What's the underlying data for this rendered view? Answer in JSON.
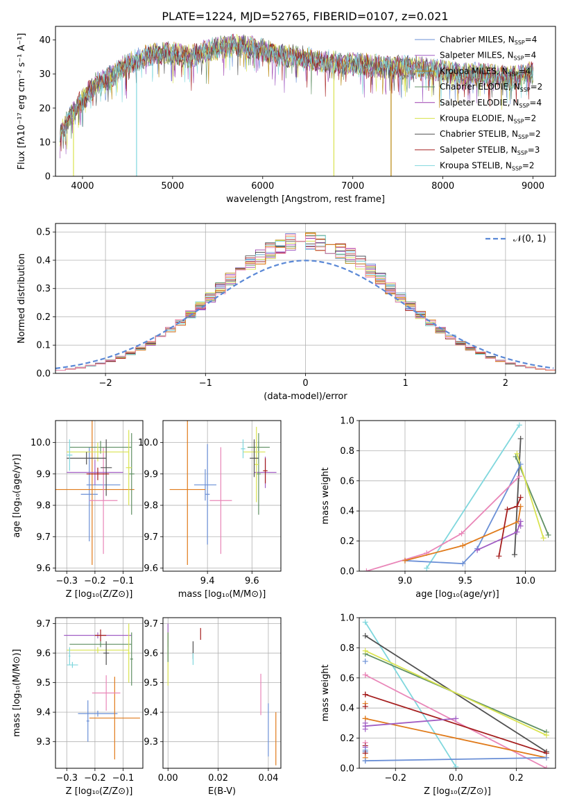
{
  "figure": {
    "title": "PLATE=1224, MJD=52765, FIBERID=0107, z=0.021"
  },
  "colors": {
    "Chabrier MILES": "#6a8fd6",
    "Salpeter MILES": "#a15ec4",
    "Kroupa MILES": "#b8860b",
    "Chabrier ELODIE": "#5f8f63",
    "Salpeter ELODIE": "#9b3fae",
    "Kroupa ELODIE": "#d9e34f",
    "Chabrier STELIB": "#505050",
    "Salpeter STELIB": "#a51e1e",
    "Kroupa STELIB": "#7fd7dd",
    "normal_curve": "#5a88d6",
    "pink": "#e986b8",
    "orange": "#e07a1a"
  },
  "chart_data": [
    {
      "id": "spectrum",
      "type": "line",
      "xlabel": "wavelength [Angstrom, rest frame]",
      "ylabel": "Flux [fλ10⁻¹⁷ erg cm⁻² s⁻¹ A⁻¹]",
      "xlim": [
        3700,
        9250
      ],
      "ylim": [
        0,
        44
      ],
      "xticks": [
        "4000",
        "5000",
        "6000",
        "7000",
        "8000",
        "9000"
      ],
      "yticks": [
        "0",
        "10",
        "20",
        "30",
        "40"
      ],
      "grid": false,
      "legend_position": "top-right",
      "legend": [
        {
          "label": "Chabrier MILES, N",
          "sub": "SSP",
          "suffix": "=4",
          "color_key": "Chabrier MILES"
        },
        {
          "label": "Salpeter MILES, N",
          "sub": "SSP",
          "suffix": "=4",
          "color_key": "Salpeter MILES"
        },
        {
          "label": "Kroupa MILES, N",
          "sub": "SSP",
          "suffix": "=4",
          "color_key": "Kroupa MILES"
        },
        {
          "label": "Chabrier ELODIE, N",
          "sub": "SSP",
          "suffix": "=2",
          "color_key": "Chabrier ELODIE"
        },
        {
          "label": "Salpeter ELODIE, N",
          "sub": "SSP",
          "suffix": "=4",
          "color_key": "Salpeter ELODIE"
        },
        {
          "label": "Kroupa ELODIE, N",
          "sub": "SSP",
          "suffix": "=2",
          "color_key": "Kroupa ELODIE"
        },
        {
          "label": "Chabrier STELIB, N",
          "sub": "SSP",
          "suffix": "=2",
          "color_key": "Chabrier STELIB"
        },
        {
          "label": "Salpeter STELIB, N",
          "sub": "SSP",
          "suffix": "=3",
          "color_key": "Salpeter STELIB"
        },
        {
          "label": "Kroupa STELIB, N",
          "sub": "SSP",
          "suffix": "=2",
          "color_key": "Kroupa STELIB"
        }
      ],
      "continuum": [
        [
          3750,
          12
        ],
        [
          3850,
          17
        ],
        [
          3950,
          21
        ],
        [
          4050,
          24
        ],
        [
          4150,
          27
        ],
        [
          4300,
          29
        ],
        [
          4450,
          32
        ],
        [
          4600,
          34
        ],
        [
          4800,
          36
        ],
        [
          5000,
          36
        ],
        [
          5200,
          35
        ],
        [
          5400,
          37
        ],
        [
          5600,
          38
        ],
        [
          5800,
          38.5
        ],
        [
          6000,
          37
        ],
        [
          6200,
          35.5
        ],
        [
          6400,
          35
        ],
        [
          6600,
          34
        ],
        [
          6800,
          33.5
        ],
        [
          7000,
          33
        ],
        [
          7200,
          32.5
        ],
        [
          7400,
          32
        ],
        [
          7600,
          32
        ],
        [
          7800,
          31.5
        ],
        [
          8000,
          31
        ],
        [
          8200,
          30
        ],
        [
          8400,
          30
        ],
        [
          8600,
          29.5
        ],
        [
          8800,
          29
        ],
        [
          9000,
          30.5
        ]
      ],
      "dips": [
        {
          "x": 4600,
          "y": 0,
          "color_key": "Kroupa STELIB"
        },
        {
          "x": 6790,
          "y": 0,
          "color_key": "Kroupa ELODIE"
        },
        {
          "x": 7425,
          "y": 0,
          "color_key": "Kroupa MILES"
        },
        {
          "x": 3900,
          "y": 0,
          "color_key": "Kroupa ELODIE"
        }
      ]
    },
    {
      "id": "residuals",
      "type": "histogram",
      "xlabel": "(data-model)/error",
      "ylabel": "Normed distribution",
      "xlim": [
        -2.5,
        2.5
      ],
      "ylim": [
        0,
        0.53
      ],
      "xticks": [
        "−2",
        "−1",
        "0",
        "1",
        "2"
      ],
      "yticks": [
        "0.0",
        "0.1",
        "0.2",
        "0.3",
        "0.4",
        "0.5"
      ],
      "grid": true,
      "bin_width": 0.1,
      "legend_position": "top-right",
      "legend_label": "𝒩(0, 1)",
      "curve": {
        "mu": 0,
        "sigma": 1
      }
    },
    {
      "id": "age_vs_Z",
      "type": "errorbar",
      "xlabel": "Z [log₁₀(Z/Z⊙)]",
      "ylabel": "age  [log₁₀(age/yr)]",
      "xlim": [
        -0.34,
        -0.03
      ],
      "ylim": [
        9.59,
        10.07
      ],
      "xticks": [
        "−0.3",
        "−0.2",
        "−0.1"
      ],
      "yticks": [
        "9.6",
        "9.7",
        "9.8",
        "9.9",
        "10.0"
      ],
      "grid": true,
      "points": [
        {
          "x": -0.17,
          "y": 9.865,
          "xerr": 0.06,
          "yerr": 0.05,
          "color_key": "Chabrier MILES"
        },
        {
          "x": -0.22,
          "y": 9.835,
          "xerr": 0.03,
          "yerr": 0.15,
          "color_key": "Chabrier MILES"
        },
        {
          "x": -0.21,
          "y": 9.85,
          "xerr": 0.15,
          "yerr": 0.24,
          "color_key": "orange"
        },
        {
          "x": -0.17,
          "y": 9.815,
          "xerr": 0.05,
          "yerr": 0.17,
          "color_key": "pink"
        },
        {
          "x": -0.2,
          "y": 9.905,
          "xerr": 0.1,
          "yerr": 0.04,
          "color_key": "Salpeter MILES"
        },
        {
          "x": -0.18,
          "y": 9.985,
          "xerr": 0.11,
          "yerr": 0.02,
          "color_key": "Chabrier ELODIE"
        },
        {
          "x": -0.07,
          "y": 9.9,
          "xerr": 0.01,
          "yerr": 0.13,
          "color_key": "Chabrier ELODIE"
        },
        {
          "x": -0.19,
          "y": 9.97,
          "xerr": 0.11,
          "yerr": 0.03,
          "color_key": "Kroupa ELODIE"
        },
        {
          "x": -0.08,
          "y": 9.92,
          "xerr": 0.01,
          "yerr": 0.12,
          "color_key": "Kroupa ELODIE"
        },
        {
          "x": -0.23,
          "y": 9.95,
          "xerr": 0.07,
          "yerr": 0.02,
          "color_key": "Chabrier STELIB"
        },
        {
          "x": -0.16,
          "y": 9.92,
          "xerr": 0.02,
          "yerr": 0.09,
          "color_key": "Chabrier STELIB"
        },
        {
          "x": -0.19,
          "y": 9.9,
          "xerr": 0.04,
          "yerr": 0.02,
          "color_key": "Salpeter STELIB"
        },
        {
          "x": -0.29,
          "y": 9.96,
          "xerr": 0.01,
          "yerr": 0.05,
          "color_key": "Kroupa STELIB"
        }
      ]
    },
    {
      "id": "age_vs_mass",
      "type": "errorbar",
      "xlabel": "mass [log₁₀(M/M⊙)]",
      "ylabel": "",
      "xlim": [
        9.2,
        9.73
      ],
      "ylim": [
        9.59,
        10.07
      ],
      "xticks": [
        "9.4",
        "9.6"
      ],
      "yticks": [
        "9.6",
        "9.7",
        "9.8",
        "9.9",
        "10.0"
      ],
      "grid": true,
      "points": [
        {
          "x": 9.39,
          "y": 9.865,
          "xerr": 0.05,
          "yerr": 0.05,
          "color_key": "Chabrier MILES"
        },
        {
          "x": 9.4,
          "y": 9.835,
          "xerr": 0.01,
          "yerr": 0.16,
          "color_key": "Chabrier MILES"
        },
        {
          "x": 9.31,
          "y": 9.85,
          "xerr": 0.08,
          "yerr": 0.24,
          "color_key": "orange"
        },
        {
          "x": 9.46,
          "y": 9.815,
          "xerr": 0.05,
          "yerr": 0.17,
          "color_key": "pink"
        },
        {
          "x": 9.66,
          "y": 9.905,
          "xerr": 0.05,
          "yerr": 0.05,
          "color_key": "Salpeter MILES"
        },
        {
          "x": 9.63,
          "y": 9.985,
          "xerr": 0.05,
          "yerr": 0.02,
          "color_key": "Chabrier ELODIE"
        },
        {
          "x": 9.63,
          "y": 9.9,
          "xerr": 0.01,
          "yerr": 0.13,
          "color_key": "Chabrier ELODIE"
        },
        {
          "x": 9.61,
          "y": 9.97,
          "xerr": 0.05,
          "yerr": 0.03,
          "color_key": "Kroupa ELODIE"
        },
        {
          "x": 9.62,
          "y": 9.93,
          "xerr": 0.01,
          "yerr": 0.12,
          "color_key": "Kroupa ELODIE"
        },
        {
          "x": 9.61,
          "y": 9.95,
          "xerr": 0.02,
          "yerr": 0.06,
          "color_key": "Chabrier STELIB"
        },
        {
          "x": 9.66,
          "y": 9.91,
          "xerr": 0.01,
          "yerr": 0.04,
          "color_key": "Salpeter STELIB"
        },
        {
          "x": 9.56,
          "y": 9.98,
          "xerr": 0.01,
          "yerr": 0.03,
          "color_key": "Kroupa STELIB"
        }
      ]
    },
    {
      "id": "massweight_vs_age",
      "type": "line",
      "xlabel": "age  [log₁₀(age/yr)]",
      "ylabel": "mass weight",
      "xlim": [
        8.62,
        10.25
      ],
      "ylim": [
        0,
        1
      ],
      "xticks": [
        "9.0",
        "9.5",
        "10.0"
      ],
      "yticks": [
        "0.0",
        "0.2",
        "0.4",
        "0.6",
        "0.8",
        "1.0"
      ],
      "grid": true,
      "series": [
        {
          "color_key": "Kroupa STELIB",
          "x": [
            9.18,
            9.95
          ],
          "y": [
            0.02,
            0.97
          ]
        },
        {
          "color_key": "Chabrier STELIB",
          "x": [
            9.91,
            9.96
          ],
          "y": [
            0.11,
            0.88
          ]
        },
        {
          "color_key": "Chabrier ELODIE",
          "x": [
            9.92,
            10.19
          ],
          "y": [
            0.76,
            0.24
          ]
        },
        {
          "color_key": "Kroupa ELODIE",
          "x": [
            9.93,
            10.15
          ],
          "y": [
            0.78,
            0.22
          ]
        },
        {
          "color_key": "Chabrier MILES",
          "x": [
            9.0,
            9.48,
            9.6,
            9.96
          ],
          "y": [
            0.07,
            0.05,
            0.15,
            0.71
          ]
        },
        {
          "color_key": "pink",
          "x": [
            8.68,
            9.18,
            9.47,
            9.95
          ],
          "y": [
            0.0,
            0.12,
            0.25,
            0.63
          ]
        },
        {
          "color_key": "orange",
          "x": [
            9.0,
            9.48,
            9.94,
            9.96
          ],
          "y": [
            0.07,
            0.17,
            0.33,
            0.43
          ]
        },
        {
          "color_key": "Salpeter MILES",
          "x": [
            9.6,
            9.93,
            9.96,
            9.96
          ],
          "y": [
            0.14,
            0.26,
            0.33,
            0.3
          ]
        },
        {
          "color_key": "Salpeter STELIB",
          "x": [
            9.78,
            9.85,
            9.93,
            9.96
          ],
          "y": [
            0.1,
            0.41,
            0.43,
            0.49
          ]
        }
      ]
    },
    {
      "id": "mass_vs_Z",
      "type": "errorbar",
      "xlabel": "Z [log₁₀(Z/Z⊙)]",
      "ylabel": "mass [log₁₀(M/M⊙)]",
      "xlim": [
        -0.34,
        -0.03
      ],
      "ylim": [
        9.21,
        9.72
      ],
      "xticks": [
        "−0.3",
        "−0.2",
        "−0.1"
      ],
      "yticks": [
        "9.3",
        "9.4",
        "9.5",
        "9.6",
        "9.7"
      ],
      "grid": true,
      "points": [
        {
          "x": -0.19,
          "y": 9.395,
          "xerr": 0.07,
          "yerr": 0.01,
          "color_key": "Chabrier MILES"
        },
        {
          "x": -0.225,
          "y": 9.37,
          "xerr": 0.005,
          "yerr": 0.07,
          "color_key": "Chabrier MILES"
        },
        {
          "x": -0.13,
          "y": 9.38,
          "xerr": 0.09,
          "yerr": 0.14,
          "color_key": "orange"
        },
        {
          "x": -0.16,
          "y": 9.465,
          "xerr": 0.05,
          "yerr": 0.06,
          "color_key": "pink"
        },
        {
          "x": -0.19,
          "y": 9.66,
          "xerr": 0.12,
          "yerr": 0.01,
          "color_key": "Salpeter MILES"
        },
        {
          "x": -0.18,
          "y": 9.63,
          "xerr": 0.11,
          "yerr": 0.01,
          "color_key": "Chabrier ELODIE"
        },
        {
          "x": -0.07,
          "y": 9.58,
          "xerr": 0.005,
          "yerr": 0.09,
          "color_key": "Chabrier ELODIE"
        },
        {
          "x": -0.19,
          "y": 9.61,
          "xerr": 0.11,
          "yerr": 0.01,
          "color_key": "Kroupa ELODIE"
        },
        {
          "x": -0.08,
          "y": 9.6,
          "xerr": 0.005,
          "yerr": 0.1,
          "color_key": "Kroupa ELODIE"
        },
        {
          "x": -0.16,
          "y": 9.6,
          "xerr": 0.01,
          "yerr": 0.04,
          "color_key": "Chabrier STELIB"
        },
        {
          "x": -0.18,
          "y": 9.66,
          "xerr": 0.02,
          "yerr": 0.02,
          "color_key": "Salpeter STELIB"
        },
        {
          "x": -0.28,
          "y": 9.56,
          "xerr": 0.02,
          "yerr": 0.01,
          "color_key": "Kroupa STELIB"
        },
        {
          "x": -0.29,
          "y": 9.59,
          "xerr": 0.003,
          "yerr": 0.03,
          "color_key": "Kroupa STELIB"
        }
      ]
    },
    {
      "id": "mass_vs_ebv",
      "type": "errorbar",
      "xlabel": "E(B-V)",
      "ylabel": "",
      "xlim": [
        -0.002,
        0.045
      ],
      "ylim": [
        9.21,
        9.72
      ],
      "xticks": [
        "0.00",
        "0.02",
        "0.04"
      ],
      "yticks": [
        "9.3",
        "9.4",
        "9.5",
        "9.6",
        "9.7"
      ],
      "grid": true,
      "points": [
        {
          "x": 0.0,
          "y": 9.66,
          "xerr": 0.0,
          "yerr": 0.04,
          "color_key": "Salpeter MILES"
        },
        {
          "x": 0.0,
          "y": 9.58,
          "xerr": 0.0,
          "yerr": 0.09,
          "color_key": "Kroupa ELODIE"
        },
        {
          "x": 0.0,
          "y": 9.62,
          "xerr": 0.0,
          "yerr": 0.05,
          "color_key": "Chabrier ELODIE"
        },
        {
          "x": 0.01,
          "y": 9.61,
          "xerr": 0.0,
          "yerr": 0.03,
          "color_key": "Chabrier STELIB"
        },
        {
          "x": 0.01,
          "y": 9.58,
          "xerr": 0.0,
          "yerr": 0.02,
          "color_key": "Kroupa STELIB"
        },
        {
          "x": 0.013,
          "y": 9.665,
          "xerr": 0.0,
          "yerr": 0.02,
          "color_key": "Salpeter STELIB"
        },
        {
          "x": 0.037,
          "y": 9.46,
          "xerr": 0.0,
          "yerr": 0.07,
          "color_key": "pink"
        },
        {
          "x": 0.04,
          "y": 9.34,
          "xerr": 0.0,
          "yerr": 0.09,
          "color_key": "Chabrier MILES"
        },
        {
          "x": 0.043,
          "y": 9.31,
          "xerr": 0.0,
          "yerr": 0.09,
          "color_key": "orange"
        }
      ]
    },
    {
      "id": "massweight_vs_Z",
      "type": "line",
      "xlabel": "Z [log₁₀(Z/Z⊙)]",
      "ylabel": "mass weight",
      "xlim": [
        -0.32,
        0.33
      ],
      "ylim": [
        0,
        1
      ],
      "xticks": [
        "−0.2",
        "0.0",
        "0.2"
      ],
      "yticks": [
        "0.0",
        "0.2",
        "0.4",
        "0.6",
        "0.8",
        "1.0"
      ],
      "grid": true,
      "series": [
        {
          "color_key": "Kroupa STELIB",
          "x": [
            -0.3,
            0.0
          ],
          "y": [
            0.97,
            0.01
          ]
        },
        {
          "color_key": "Chabrier STELIB",
          "x": [
            -0.3,
            0.3
          ],
          "y": [
            0.88,
            0.11
          ]
        },
        {
          "color_key": "Chabrier ELODIE",
          "x": [
            -0.3,
            0.3
          ],
          "y": [
            0.76,
            0.24
          ]
        },
        {
          "color_key": "Kroupa ELODIE",
          "x": [
            -0.3,
            0.3
          ],
          "y": [
            0.78,
            0.22
          ]
        },
        {
          "color_key": "pink",
          "x": [
            -0.3,
            0.3
          ],
          "y": [
            0.62,
            0.0
          ]
        },
        {
          "color_key": "Salpeter STELIB",
          "x": [
            -0.3,
            0.3
          ],
          "y": [
            0.49,
            0.1
          ]
        },
        {
          "color_key": "orange",
          "x": [
            -0.3,
            0.3
          ],
          "y": [
            0.33,
            0.07
          ]
        },
        {
          "color_key": "Salpeter MILES",
          "x": [
            -0.3,
            0.0
          ],
          "y": [
            0.28,
            0.33
          ]
        },
        {
          "color_key": "Chabrier MILES",
          "x": [
            -0.3,
            0.3
          ],
          "y": [
            0.05,
            0.07
          ]
        }
      ],
      "markers_left": [
        0.71,
        0.62,
        0.49,
        0.43,
        0.41,
        0.33,
        0.3,
        0.28,
        0.26,
        0.17,
        0.15,
        0.14,
        0.12,
        0.11,
        0.1,
        0.07,
        0.05
      ]
    }
  ]
}
